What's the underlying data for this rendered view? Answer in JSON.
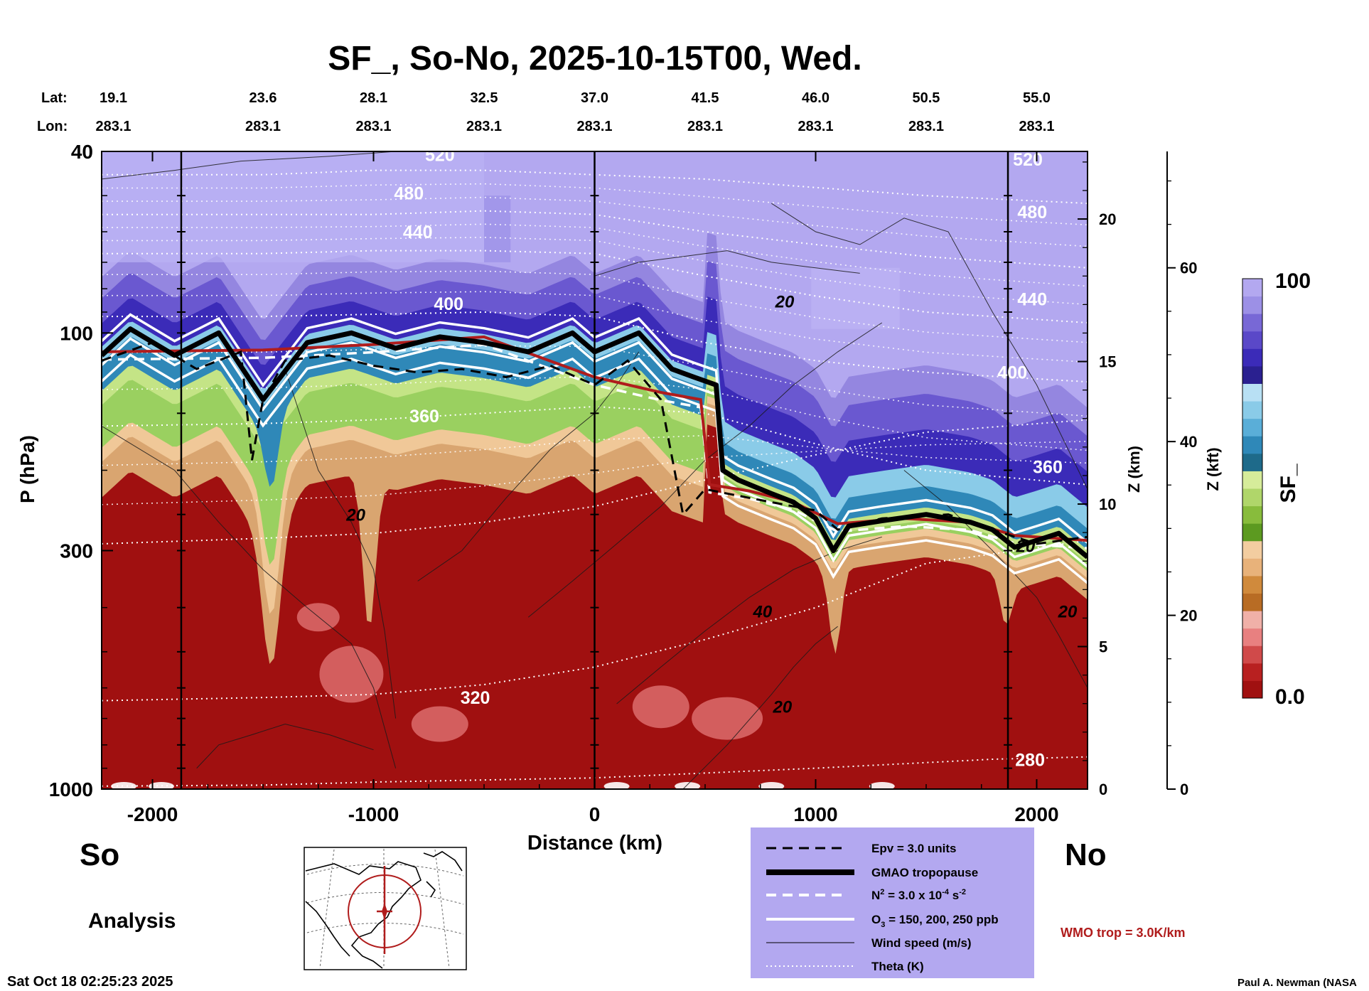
{
  "chart_data": {
    "type": "heatmap",
    "title": "SF_, So-No, 2025-10-15T00, Wed.",
    "xlabel": "Distance (km)",
    "ylabel_left": "P (hPa)",
    "ylabel_right_km": "Z (km)",
    "ylabel_right_kft": "Z (kft)",
    "colorbar_label": "SF_",
    "xlim": [
      -2230,
      2230
    ],
    "x_ticks": [
      -2000,
      -1000,
      0,
      1000,
      2000
    ],
    "x_tick_labels": [
      "-2000",
      "-1000",
      "0",
      "1000",
      "2000"
    ],
    "y_scale": "log",
    "ylim": [
      1000,
      40
    ],
    "y_ticks": [
      40,
      100,
      300,
      1000
    ],
    "y_tick_labels": [
      "40",
      "100",
      "300",
      "1000"
    ],
    "z_km_ticks": [
      0,
      5,
      10,
      15,
      20
    ],
    "z_kft_ticks": [
      0,
      20,
      40,
      60
    ],
    "colorbar_range": [
      0.0,
      100
    ],
    "colorbar_tick_labels": [
      "100",
      "0.0"
    ],
    "lat_label": "Lat:",
    "lon_label": "Lon:",
    "lat_values": [
      "19.1",
      "23.6",
      "28.1",
      "32.5",
      "37.0",
      "41.5",
      "46.0",
      "50.5",
      "55.0"
    ],
    "lon_values": [
      "283.1",
      "283.1",
      "283.1",
      "283.1",
      "283.1",
      "283.1",
      "283.1",
      "283.1",
      "283.1"
    ],
    "vertical_markers_km": [
      -1870,
      0,
      1870
    ],
    "theta_contours": [
      {
        "label": "280",
        "x": [
          -2230,
          -1500,
          -1000,
          0,
          1000,
          1800,
          2230
        ],
        "p": [
          985,
          980,
          965,
          945,
          900,
          860,
          850
        ]
      },
      {
        "label": "320",
        "x": [
          -2230,
          -1500,
          -1000,
          -500,
          0,
          500,
          1000,
          1500,
          2230
        ],
        "p": [
          640,
          630,
          620,
          590,
          540,
          470,
          400,
          320,
          285
        ]
      },
      {
        "label": "",
        "x": [
          -2230,
          -1500,
          -1000,
          -500,
          0,
          500,
          1000,
          1500,
          2230
        ],
        "p": [
          290,
          282,
          275,
          260,
          240,
          210,
          185,
          165,
          155
        ]
      },
      {
        "label": "360",
        "x": [
          -2230,
          -1500,
          -1000,
          -500,
          0,
          500,
          1000,
          1500,
          2230
        ],
        "p": [
          160,
          158,
          155,
          150,
          145,
          150,
          175,
          200,
          215
        ]
      },
      {
        "label": "400",
        "x": [
          -2230,
          -1500,
          -1000,
          -500,
          0,
          500,
          1000,
          1500,
          2230
        ],
        "p": [
          92,
          92,
          91,
          90,
          92,
          105,
          115,
          122,
          128
        ]
      },
      {
        "label": "440",
        "x": [
          -2230,
          -1500,
          -1000,
          -500,
          0,
          500,
          1000,
          1500,
          2230
        ],
        "p": [
          67,
          67,
          66,
          66,
          67,
          75,
          83,
          90,
          95
        ]
      },
      {
        "label": "480",
        "x": [
          -2230,
          -1500,
          -1000,
          -500,
          0,
          500,
          1000,
          1500,
          2230
        ],
        "p": [
          55,
          55,
          55,
          54,
          55,
          60,
          64,
          68,
          72
        ]
      },
      {
        "label": "520",
        "x": [
          -2230,
          -1500,
          -1000,
          -500,
          0,
          500,
          1000,
          1500,
          2230
        ],
        "p": [
          45,
          45,
          44,
          44,
          45,
          46,
          48,
          50,
          52
        ]
      }
    ],
    "contour_labels": [
      {
        "text": "520",
        "x": -700,
        "p": 42
      },
      {
        "text": "480",
        "x": -840,
        "p": 51
      },
      {
        "text": "440",
        "x": -800,
        "p": 62
      },
      {
        "text": "400",
        "x": -660,
        "p": 89
      },
      {
        "text": "360",
        "x": -770,
        "p": 157
      },
      {
        "text": "320",
        "x": -540,
        "p": 650
      },
      {
        "text": "520",
        "x": 1960,
        "p": 43
      },
      {
        "text": "480",
        "x": 1980,
        "p": 56
      },
      {
        "text": "440",
        "x": 1980,
        "p": 87
      },
      {
        "text": "400",
        "x": 1890,
        "p": 126
      },
      {
        "text": "360",
        "x": 2050,
        "p": 203
      },
      {
        "text": "280",
        "x": 1970,
        "p": 890
      },
      {
        "text": "20",
        "x": 860,
        "p": 88
      },
      {
        "text": "20",
        "x": -1080,
        "p": 258
      },
      {
        "text": "40",
        "x": 760,
        "p": 420
      },
      {
        "text": "20",
        "x": 850,
        "p": 680
      },
      {
        "text": "20",
        "x": 2140,
        "p": 420
      },
      {
        "text": "20",
        "x": 1950,
        "p": 302
      }
    ],
    "gmao_tropopause": {
      "x": [
        -2230,
        -2100,
        -1900,
        -1700,
        -1500,
        -1300,
        -1100,
        -900,
        -700,
        -500,
        -300,
        -100,
        0,
        200,
        350,
        450,
        550,
        580,
        650,
        800,
        900,
        1000,
        1080,
        1150,
        1300,
        1500,
        1700,
        1800,
        1900,
        2000,
        2100,
        2230
      ],
      "p": [
        112,
        98,
        112,
        100,
        140,
        105,
        100,
        108,
        102,
        105,
        110,
        100,
        110,
        100,
        120,
        125,
        130,
        200,
        210,
        225,
        235,
        255,
        300,
        265,
        258,
        250,
        260,
        270,
        295,
        285,
        275,
        310
      ]
    },
    "wmo_tropopause": {
      "label": "WMO trop = 3.0K/km",
      "x": [
        -2230,
        -1500,
        -1000,
        -500,
        0,
        300,
        480,
        520,
        700,
        900,
        1100,
        1400,
        1700,
        1900,
        2230
      ],
      "p": [
        110,
        109,
        106,
        102,
        125,
        135,
        140,
        215,
        222,
        235,
        262,
        255,
        260,
        278,
        285
      ]
    },
    "epv_contour": {
      "x": [
        -2230,
        -2000,
        -1800,
        -1600,
        -1550,
        -1500,
        -1400,
        -1200,
        -1000,
        -800,
        -600,
        -400,
        -200,
        0,
        150,
        300,
        400,
        500,
        600,
        800,
        1000,
        1100,
        1300,
        1600,
        1800,
        2000,
        2230
      ],
      "p": [
        115,
        105,
        120,
        110,
        190,
        140,
        115,
        112,
        118,
        122,
        120,
        125,
        118,
        130,
        115,
        140,
        250,
        220,
        225,
        235,
        245,
        270,
        255,
        250,
        270,
        290,
        280
      ]
    },
    "legend": [
      {
        "label": "Epv = 3.0 units",
        "style": "dashed-black"
      },
      {
        "label": "GMAO tropopause",
        "style": "thick-black"
      },
      {
        "label": "N",
        "style": "dashed-white"
      },
      {
        "label": "O",
        "style": "solid-white"
      },
      {
        "label": "Wind speed (m/s)",
        "style": "thin-black"
      },
      {
        "label": "Theta (K)",
        "style": "dotted-white"
      }
    ],
    "legend_n2_parts": {
      "base": "N",
      "sup": "2",
      "rest": " = 3.0 x 10",
      "exp": "-4",
      "unit": " s",
      "unit_exp": "-2"
    },
    "legend_o3_parts": {
      "base": "O",
      "sub": "3",
      "rest": " = 150, 200, 250 ppb"
    },
    "colors": {
      "stratosphere_lavender": "#b3a8f0",
      "stratosphere_deep": "#3b2bb8",
      "tropopause_blue": "#2f88b8",
      "green": "#9ad060",
      "tan": "#d9a570",
      "troposphere_red": "#a01010",
      "wmo_color": "#b01c1c",
      "legend_bg": "#b3a8f0"
    },
    "colorbar_stops": [
      "#a01010",
      "#b82020",
      "#d04a4a",
      "#e88080",
      "#f0b0a8",
      "#b86c24",
      "#d08a3c",
      "#e8b27a",
      "#f3cda0",
      "#5c9a20",
      "#88bc3c",
      "#b0d66a",
      "#d6ec9a",
      "#1e6a8a",
      "#2f88b8",
      "#5aaed8",
      "#8acbe8",
      "#b8e0f4",
      "#2a2090",
      "#3b2bb8",
      "#5a48c8",
      "#7868d6",
      "#9c90e6",
      "#b3a8f0"
    ]
  },
  "labels": {
    "south": "So",
    "north": "No",
    "analysis": "Analysis",
    "timestamp": "Sat Oct 18 02:25:23 2025",
    "author": "Paul A. Newman (NASA"
  }
}
